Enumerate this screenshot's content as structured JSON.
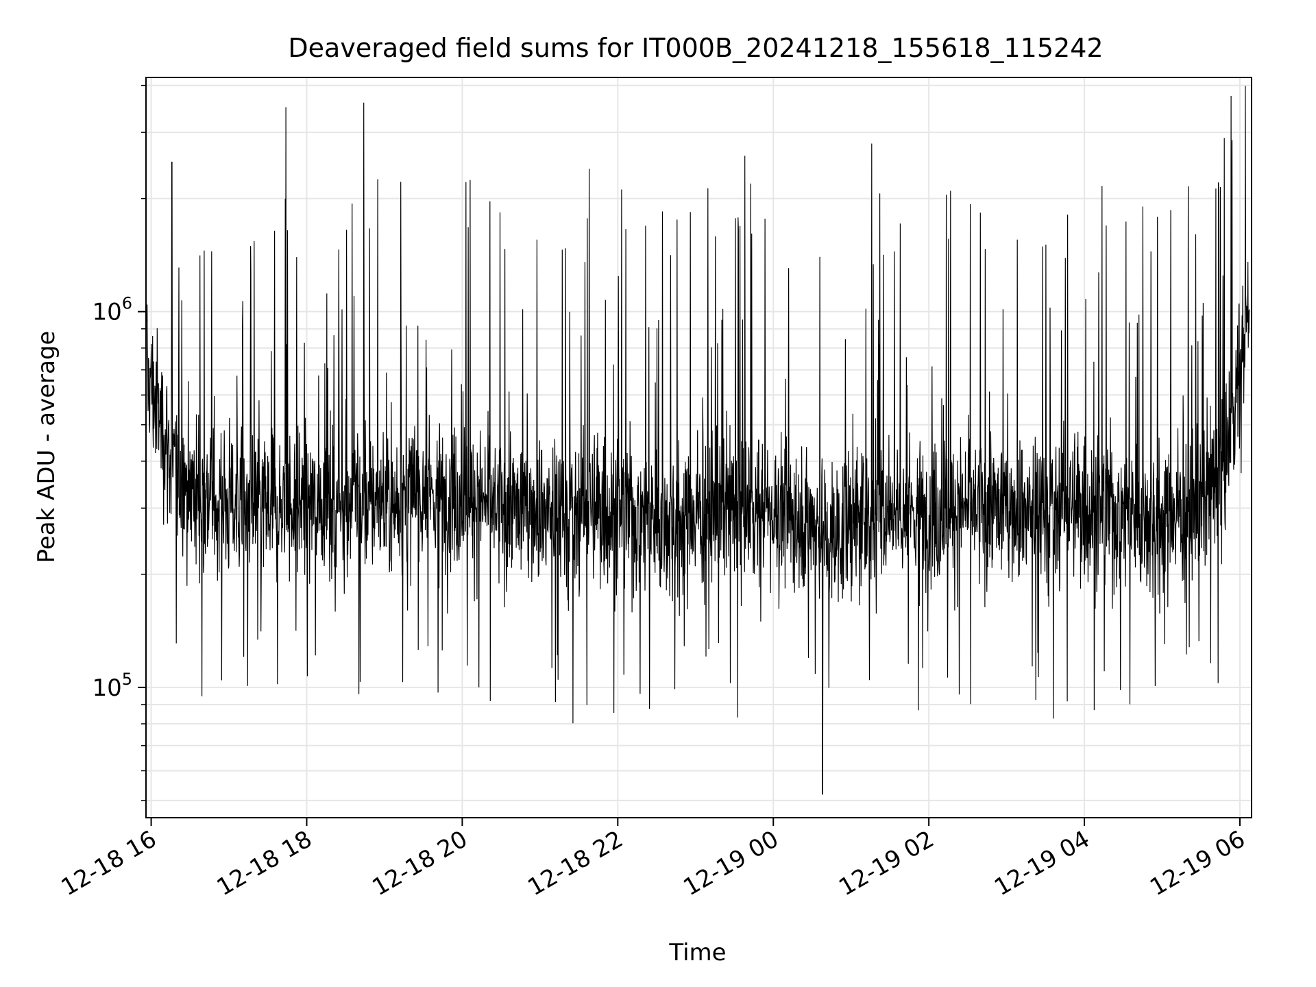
{
  "chart_data": {
    "type": "line",
    "title": "Deaveraged field sums for IT000B_20241218_155618_115242",
    "xlabel": "Time",
    "ylabel": "Peak ADU - average",
    "x_scale": "time",
    "y_scale": "log",
    "xlim": [
      "2024-12-18 15:56",
      "2024-12-19 06:09"
    ],
    "ylim": [
      45000,
      4200000
    ],
    "x_ticks": [
      "12-18 16",
      "12-18 18",
      "12-18 20",
      "12-18 22",
      "12-19 00",
      "12-19 02",
      "12-19 04",
      "12-19 06"
    ],
    "y_ticks": [
      {
        "base": "10",
        "exp": "5",
        "value": 100000
      },
      {
        "base": "10",
        "exp": "6",
        "value": 1000000
      }
    ],
    "grid": true,
    "legend": "none",
    "line_color": "#000000",
    "series_profile": {
      "x_hours": [
        15.94,
        16.3,
        16.6,
        17.0,
        17.5,
        18.0,
        18.5,
        19.0,
        19.5,
        20.0,
        20.5,
        21.0,
        21.5,
        21.8,
        22.0,
        22.5,
        23.0,
        23.5,
        24.0,
        24.5,
        24.7,
        25.0,
        25.5,
        26.0,
        26.5,
        27.0,
        27.5,
        28.0,
        28.5,
        29.0,
        29.5,
        29.8,
        30.1
      ],
      "median_adu": [
        700000,
        380000,
        330000,
        310000,
        300000,
        310000,
        320000,
        310000,
        330000,
        320000,
        300000,
        300000,
        290000,
        300000,
        290000,
        280000,
        290000,
        300000,
        300000,
        280000,
        250000,
        270000,
        300000,
        290000,
        300000,
        300000,
        300000,
        300000,
        290000,
        290000,
        300000,
        400000,
        950000
      ]
    },
    "notable_spikes": [
      {
        "x": "2024-12-18 16:16",
        "y": 2500000
      },
      {
        "x": "2024-12-18 17:44",
        "y": 3500000
      },
      {
        "x": "2024-12-18 18:44",
        "y": 3600000
      },
      {
        "x": "2024-12-18 21:38",
        "y": 2400000
      },
      {
        "x": "2024-12-18 23:38",
        "y": 2600000
      },
      {
        "x": "2024-12-19 01:16",
        "y": 2800000
      },
      {
        "x": "2024-12-19 05:48",
        "y": 2900000
      },
      {
        "x": "2024-12-19 00:38",
        "y": 52000
      }
    ]
  }
}
